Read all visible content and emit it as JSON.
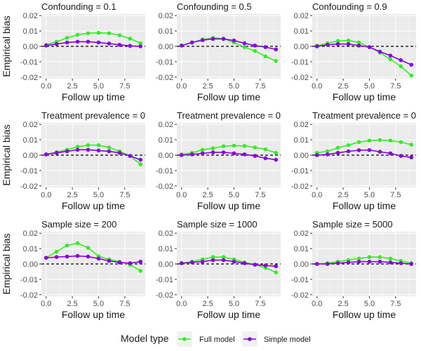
{
  "chart_data": {
    "type": "line",
    "layout": "facet-grid 3x3",
    "xlabel": "Follow up time",
    "ylabel": "Empirical bias",
    "xlim": [
      -0.45,
      9.45
    ],
    "ylim": [
      -0.021,
      0.021
    ],
    "xticks": [
      0,
      2.5,
      5,
      7.5
    ],
    "xtick_labels": [
      "0.0",
      "2.5",
      "5.0",
      "7.5"
    ],
    "yticks": [
      -0.02,
      -0.01,
      0,
      0.01,
      0.02
    ],
    "ytick_labels": [
      "-0.02",
      "-0.01",
      "0.00",
      "0.01",
      "0.02"
    ],
    "reference_line": {
      "y": 0,
      "style": "dashed"
    },
    "grid": true,
    "legend": {
      "title": "Model type",
      "position": "bottom",
      "entries": [
        {
          "name": "Full model",
          "color": "#33ee22"
        },
        {
          "name": "Simple model",
          "color": "#8800dd"
        }
      ]
    },
    "x": [
      0,
      1,
      2,
      3,
      4,
      5,
      6,
      7,
      8,
      9
    ],
    "panels": [
      {
        "title": "Confounding = 0.1",
        "series": [
          {
            "name": "Full model",
            "values": [
              0.001,
              0.003,
              0.0055,
              0.0075,
              0.0085,
              0.0088,
              0.0085,
              0.0072,
              0.005,
              0.002
            ]
          },
          {
            "name": "Simple model",
            "values": [
              0.0005,
              0.0015,
              0.0025,
              0.003,
              0.003,
              0.0025,
              0.0018,
              0.001,
              0.0003,
              0.0
            ]
          }
        ]
      },
      {
        "title": "Confounding = 0.5",
        "series": [
          {
            "name": "Full model",
            "values": [
              0.0005,
              0.0025,
              0.0045,
              0.0055,
              0.005,
              0.0025,
              -0.0005,
              -0.003,
              -0.0065,
              -0.0095
            ]
          },
          {
            "name": "Simple model",
            "values": [
              0.0005,
              0.0025,
              0.004,
              0.0048,
              0.0048,
              0.0038,
              0.002,
              0.0005,
              -0.0005,
              -0.002
            ]
          }
        ]
      },
      {
        "title": "Confounding = 0.9",
        "series": [
          {
            "name": "Full model",
            "values": [
              0.0005,
              0.002,
              0.0035,
              0.0038,
              0.0025,
              -0.0005,
              -0.004,
              -0.0085,
              -0.013,
              -0.019
            ]
          },
          {
            "name": "Simple model",
            "values": [
              0.0,
              0.001,
              0.0015,
              0.0015,
              0.0005,
              -0.0005,
              -0.0035,
              -0.006,
              -0.009,
              -0.012
            ]
          }
        ]
      },
      {
        "title": "Treatment prevalence = 0",
        "series": [
          {
            "name": "Full model",
            "values": [
              0.0005,
              0.002,
              0.0035,
              0.0055,
              0.0065,
              0.0065,
              0.005,
              0.0025,
              -0.0005,
              -0.006
            ]
          },
          {
            "name": "Simple model",
            "values": [
              0.0005,
              0.0015,
              0.0025,
              0.0035,
              0.0035,
              0.003,
              0.0025,
              0.0015,
              -0.0005,
              -0.003
            ]
          }
        ]
      },
      {
        "title": "Treatment prevalence = 0",
        "series": [
          {
            "name": "Full model",
            "values": [
              0.0005,
              0.0015,
              0.0035,
              0.0045,
              0.0058,
              0.0062,
              0.006,
              0.005,
              0.0038,
              0.0015
            ]
          },
          {
            "name": "Simple model",
            "values": [
              0.0,
              0.0005,
              0.0012,
              0.0018,
              0.0018,
              0.0012,
              0.0005,
              -0.0005,
              -0.002,
              -0.003
            ]
          }
        ]
      },
      {
        "title": "Treatment prevalence = 0",
        "series": [
          {
            "name": "Full model",
            "values": [
              0.0015,
              0.0025,
              0.0048,
              0.0065,
              0.0085,
              0.0095,
              0.0098,
              0.0095,
              0.0085,
              0.0068
            ]
          },
          {
            "name": "Simple model",
            "values": [
              0.0,
              0.0005,
              0.0015,
              0.0025,
              0.0032,
              0.0033,
              0.0022,
              0.0012,
              -0.0005,
              -0.0015
            ]
          }
        ]
      },
      {
        "title": "Sample size = 200",
        "series": [
          {
            "name": "Full model",
            "values": [
              0.004,
              0.008,
              0.012,
              0.0135,
              0.0105,
              0.005,
              0.003,
              0.0015,
              -0.0005,
              -0.0045
            ]
          },
          {
            "name": "Simple model",
            "values": [
              0.004,
              0.0045,
              0.0048,
              0.0052,
              0.0048,
              0.0035,
              0.002,
              0.001,
              0.0005,
              0.0015
            ]
          }
        ]
      },
      {
        "title": "Sample size = 1000",
        "series": [
          {
            "name": "Full model",
            "values": [
              0.0005,
              0.0015,
              0.003,
              0.0045,
              0.0045,
              0.003,
              0.001,
              -0.0005,
              -0.0025,
              -0.0055
            ]
          },
          {
            "name": "Simple model",
            "values": [
              0.0005,
              0.001,
              0.0015,
              0.0025,
              0.0025,
              0.0015,
              0.0005,
              -0.0005,
              -0.001,
              -0.0015
            ]
          }
        ]
      },
      {
        "title": "Sample size = 5000",
        "series": [
          {
            "name": "Full model",
            "values": [
              0.0,
              0.0005,
              0.0015,
              0.0025,
              0.0035,
              0.0045,
              0.0045,
              0.0035,
              0.002,
              0.0005
            ]
          },
          {
            "name": "Simple model",
            "values": [
              0.0,
              0.0,
              0.0005,
              0.001,
              0.0015,
              0.0015,
              0.0015,
              0.001,
              0.0005,
              0.0
            ]
          }
        ]
      }
    ]
  }
}
